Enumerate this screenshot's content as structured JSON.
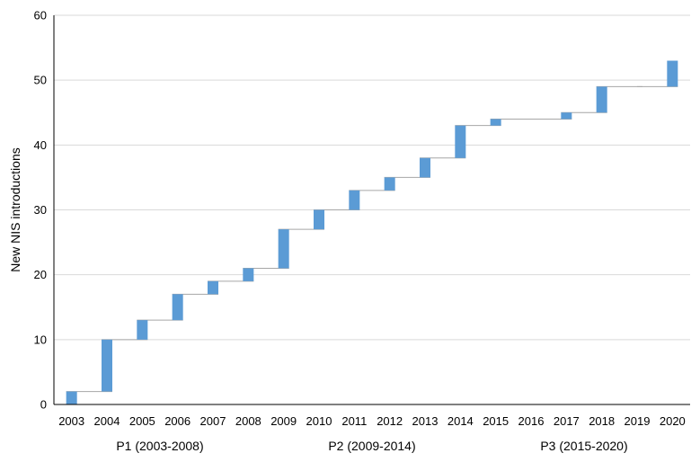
{
  "chart_data": {
    "type": "bar",
    "subtype": "waterfall",
    "categories": [
      "2003",
      "2004",
      "2005",
      "2006",
      "2007",
      "2008",
      "2009",
      "2010",
      "2011",
      "2012",
      "2013",
      "2014",
      "2015",
      "2016",
      "2017",
      "2018",
      "2019",
      "2020"
    ],
    "series": [
      {
        "increments": [
          2,
          8,
          3,
          4,
          2,
          2,
          6,
          3,
          3,
          2,
          3,
          5,
          1,
          0,
          1,
          4,
          0,
          4
        ],
        "cumulative": [
          2,
          10,
          13,
          17,
          19,
          21,
          27,
          30,
          33,
          35,
          38,
          43,
          44,
          44,
          45,
          49,
          49,
          53
        ]
      }
    ],
    "title": "",
    "xlabel": "",
    "ylabel": "New NIS introductions",
    "ylim": [
      0,
      60
    ],
    "yticks": [
      "0",
      "10",
      "20",
      "30",
      "40",
      "50",
      "60"
    ],
    "grid": true,
    "legend": "none",
    "periods": [
      {
        "label": "P1 (2003-2008)",
        "from": "2003",
        "to": "2008"
      },
      {
        "label": "P2 (2009-2014)",
        "from": "2009",
        "to": "2014"
      },
      {
        "label": "P3 (2015-2020)",
        "from": "2015",
        "to": "2020"
      }
    ],
    "colors": {
      "bar": "#5b9bd5",
      "grid": "#d9d9d9",
      "connector": "#a6a6a6",
      "axis": "#000000"
    }
  }
}
